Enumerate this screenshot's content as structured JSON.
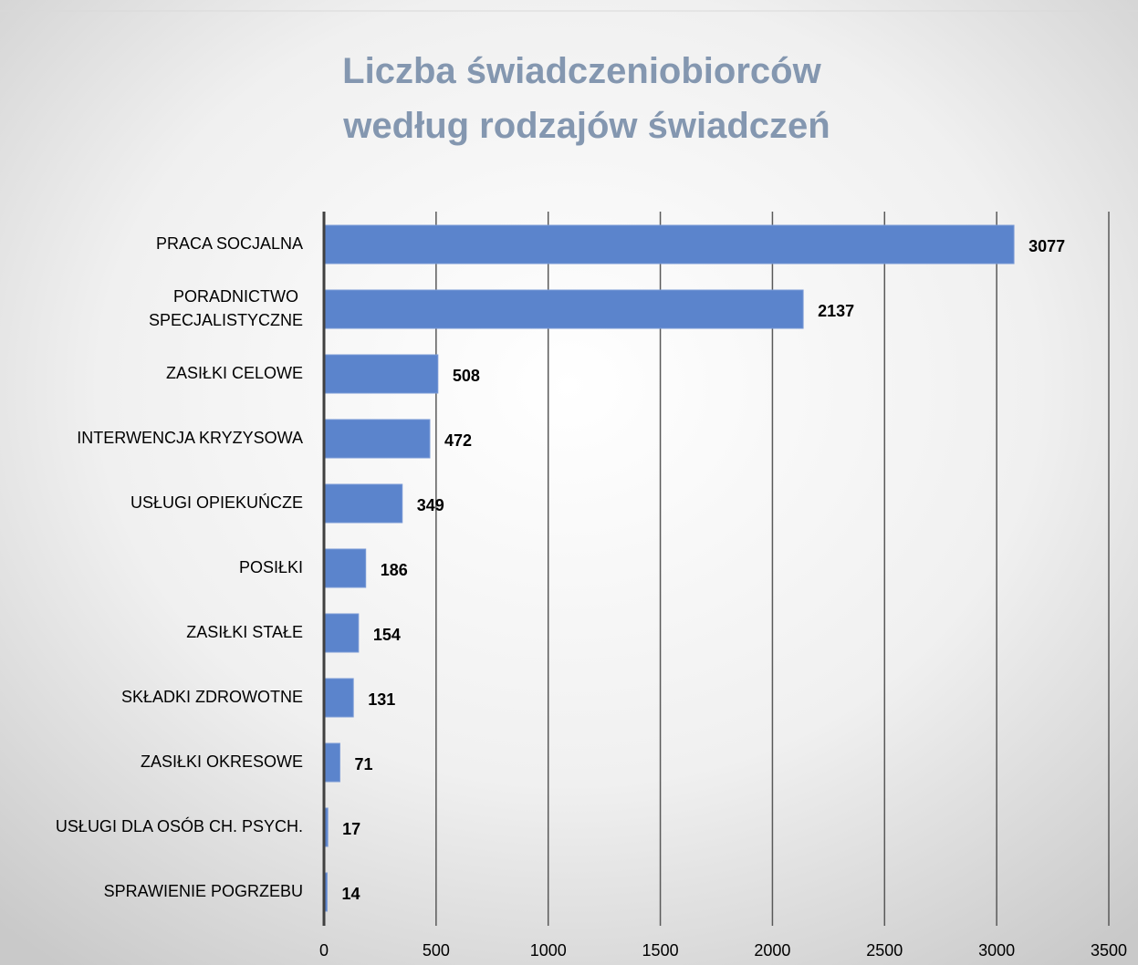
{
  "chart_data": {
    "type": "bar",
    "orientation": "horizontal",
    "title": "Liczba świadczeniobiorców\nwedług rodzajów świadczeń",
    "categories": [
      "PRACA SOCJALNA",
      "PORADNICTWO SPECJALISTYCZNE",
      "ZASIŁKI CELOWE",
      "INTERWENCJA KRYZYSOWA",
      "USŁUGI OPIEKUŃCZE",
      "POSIŁKI",
      "ZASIŁKI STAŁE",
      "SKŁADKI ZDROWOTNE",
      "ZASIŁKI OKRESOWE",
      "USŁUGI DLA OSÓB CH. PSYCH.",
      "SPRAWIENIE POGRZEBU"
    ],
    "values": [
      3077,
      2137,
      508,
      472,
      349,
      186,
      154,
      131,
      71,
      17,
      14
    ],
    "color": "#5b84cc",
    "xlim": [
      0,
      3500
    ],
    "xticks": [
      0,
      500,
      1000,
      1500,
      2000,
      2500,
      3000,
      3500
    ],
    "grid": true
  }
}
